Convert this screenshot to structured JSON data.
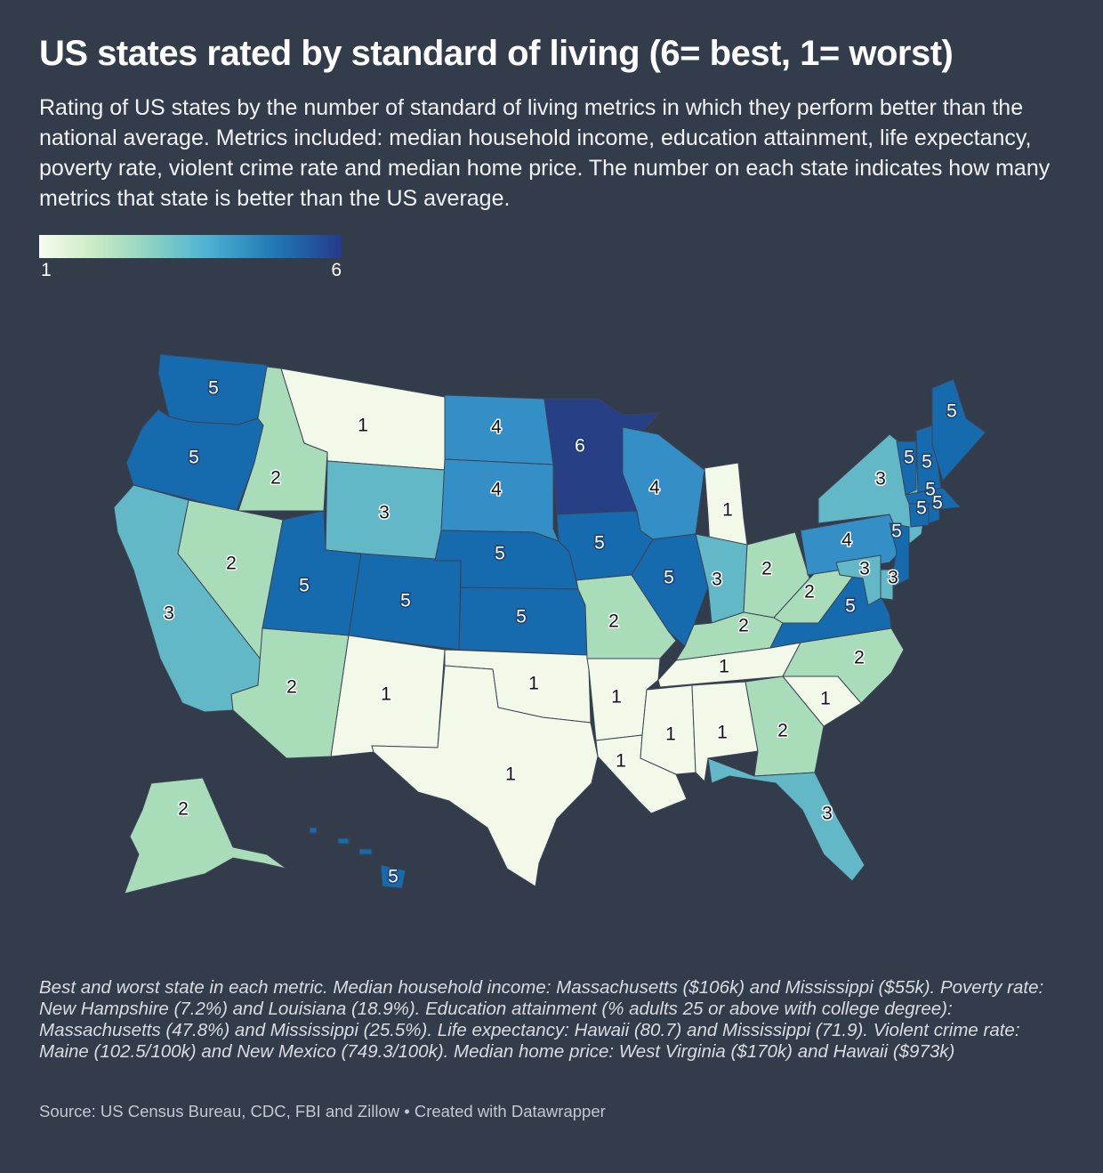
{
  "title": "US states rated by standard of living (6= best, 1= worst)",
  "subtitle": "Rating of US states by the number of standard of living metrics in which they perform better than the national average. Metrics included: median household income, education attainment, life expectancy, poverty rate, violent crime rate and median home price. The number on each state indicates how many metrics that state is better than the US average.",
  "legend": {
    "min": "1",
    "max": "6"
  },
  "scale_colors": {
    "1": "#f3f9e9",
    "2": "#a9dcb9",
    "3": "#62b8c7",
    "4": "#338fc6",
    "5": "#166aae",
    "6": "#263f85"
  },
  "states": [
    {
      "name": "Washington",
      "value": 5,
      "label": "5"
    },
    {
      "name": "Oregon",
      "value": 5,
      "label": "5"
    },
    {
      "name": "California",
      "value": 3,
      "label": "3"
    },
    {
      "name": "Idaho",
      "value": 2,
      "label": "2"
    },
    {
      "name": "Nevada",
      "value": 2,
      "label": "2"
    },
    {
      "name": "Montana",
      "value": 1,
      "label": "1"
    },
    {
      "name": "Wyoming",
      "value": 3,
      "label": "3"
    },
    {
      "name": "Utah",
      "value": 5,
      "label": "5"
    },
    {
      "name": "Arizona",
      "value": 2,
      "label": "2"
    },
    {
      "name": "Colorado",
      "value": 5,
      "label": "5"
    },
    {
      "name": "New Mexico",
      "value": 1,
      "label": "1"
    },
    {
      "name": "North Dakota",
      "value": 4,
      "label": "4"
    },
    {
      "name": "South Dakota",
      "value": 4,
      "label": "4"
    },
    {
      "name": "Nebraska",
      "value": 5,
      "label": "5"
    },
    {
      "name": "Kansas",
      "value": 5,
      "label": "5"
    },
    {
      "name": "Oklahoma",
      "value": 1,
      "label": "1"
    },
    {
      "name": "Texas",
      "value": 1,
      "label": "1"
    },
    {
      "name": "Minnesota",
      "value": 6,
      "label": "6"
    },
    {
      "name": "Iowa",
      "value": 5,
      "label": "5"
    },
    {
      "name": "Missouri",
      "value": 2,
      "label": "2"
    },
    {
      "name": "Arkansas",
      "value": 1,
      "label": "1"
    },
    {
      "name": "Louisiana",
      "value": 1,
      "label": "1"
    },
    {
      "name": "Wisconsin",
      "value": 4,
      "label": "4"
    },
    {
      "name": "Illinois",
      "value": 5,
      "label": "5"
    },
    {
      "name": "Michigan",
      "value": 1,
      "label": "1"
    },
    {
      "name": "Indiana",
      "value": 3,
      "label": "3"
    },
    {
      "name": "Ohio",
      "value": 2,
      "label": "2"
    },
    {
      "name": "Kentucky",
      "value": 2,
      "label": "2"
    },
    {
      "name": "Tennessee",
      "value": 1,
      "label": "1"
    },
    {
      "name": "Mississippi",
      "value": 1,
      "label": "1"
    },
    {
      "name": "Alabama",
      "value": 1,
      "label": "1"
    },
    {
      "name": "Georgia",
      "value": 2,
      "label": "2"
    },
    {
      "name": "Florida",
      "value": 3,
      "label": "3"
    },
    {
      "name": "South Carolina",
      "value": 1,
      "label": "1"
    },
    {
      "name": "North Carolina",
      "value": 2,
      "label": "2"
    },
    {
      "name": "Virginia",
      "value": 5,
      "label": "5"
    },
    {
      "name": "West Virginia",
      "value": 2,
      "label": "2"
    },
    {
      "name": "Pennsylvania",
      "value": 4,
      "label": "4"
    },
    {
      "name": "New York",
      "value": 3,
      "label": "3"
    },
    {
      "name": "New Jersey",
      "value": 5,
      "label": "5"
    },
    {
      "name": "Delaware",
      "value": 3,
      "label": "3"
    },
    {
      "name": "Maryland",
      "value": 3,
      "label": "3"
    },
    {
      "name": "Vermont",
      "value": 5,
      "label": "5"
    },
    {
      "name": "New Hampshire",
      "value": 5,
      "label": "5"
    },
    {
      "name": "Maine",
      "value": 5,
      "label": "5"
    },
    {
      "name": "Massachusetts",
      "value": 5,
      "label": "5"
    },
    {
      "name": "Connecticut",
      "value": 5,
      "label": "5"
    },
    {
      "name": "Rhode Island",
      "value": 5,
      "label": "5"
    },
    {
      "name": "Alaska",
      "value": 2,
      "label": "2"
    },
    {
      "name": "Hawaii",
      "value": 5,
      "label": "5"
    }
  ],
  "notes": "Best and worst state in each metric. Median household income: Massachusetts ($106k) and Mississippi ($55k). Poverty rate: New Hampshire (7.2%) and Louisiana (18.9%). Education attainment (% adults 25 or above with college degree): Massachusetts (47.8%) and Mississippi (25.5%). Life expectancy: Hawaii (80.7) and Mississippi (71.9). Violent crime rate: Maine (102.5/100k) and New Mexico (749.3/100k). Median home price: West Virginia ($170k) and Hawaii ($973k)",
  "source": "Source: US Census Bureau, CDC, FBI and Zillow • Created with Datawrapper"
}
